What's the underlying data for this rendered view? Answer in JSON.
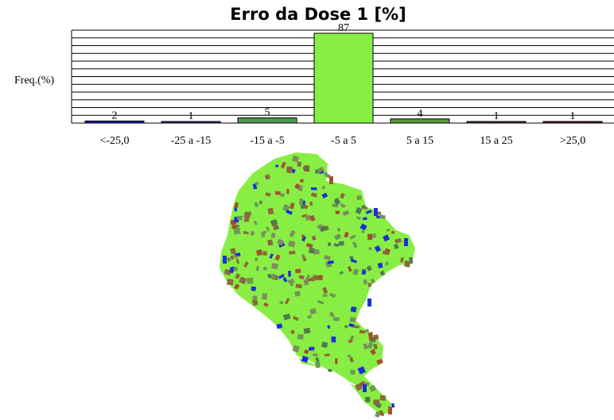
{
  "chart_data": {
    "type": "bar",
    "title": "Erro da Dose 1 [%]",
    "xlabel": "",
    "ylabel": "Freq.(%)",
    "categories": [
      "<-25,0",
      "-25 a -15",
      "-15 a -5",
      "-5 a 5",
      "5 a 15",
      "15 a 25",
      ">25,0"
    ],
    "values": [
      2,
      1,
      5,
      87,
      4,
      1,
      1
    ],
    "data_labels": [
      "2",
      "1",
      "5",
      "87",
      "4",
      "1",
      "1"
    ],
    "colors": [
      "#1f1fa8",
      "#3a3a6e",
      "#4f9a4f",
      "#88ee44",
      "#5f9a35",
      "#5a3a2a",
      "#5a2020"
    ],
    "ylim": [
      0,
      90
    ],
    "grid": true,
    "legend": "none"
  },
  "map": {
    "base_color": "#88ee44",
    "speck_colors": [
      "#7c8f5c",
      "#6a9a55",
      "#a0522d",
      "#1c2fd6",
      "#4f7a4f",
      "#8a6a3a"
    ]
  }
}
